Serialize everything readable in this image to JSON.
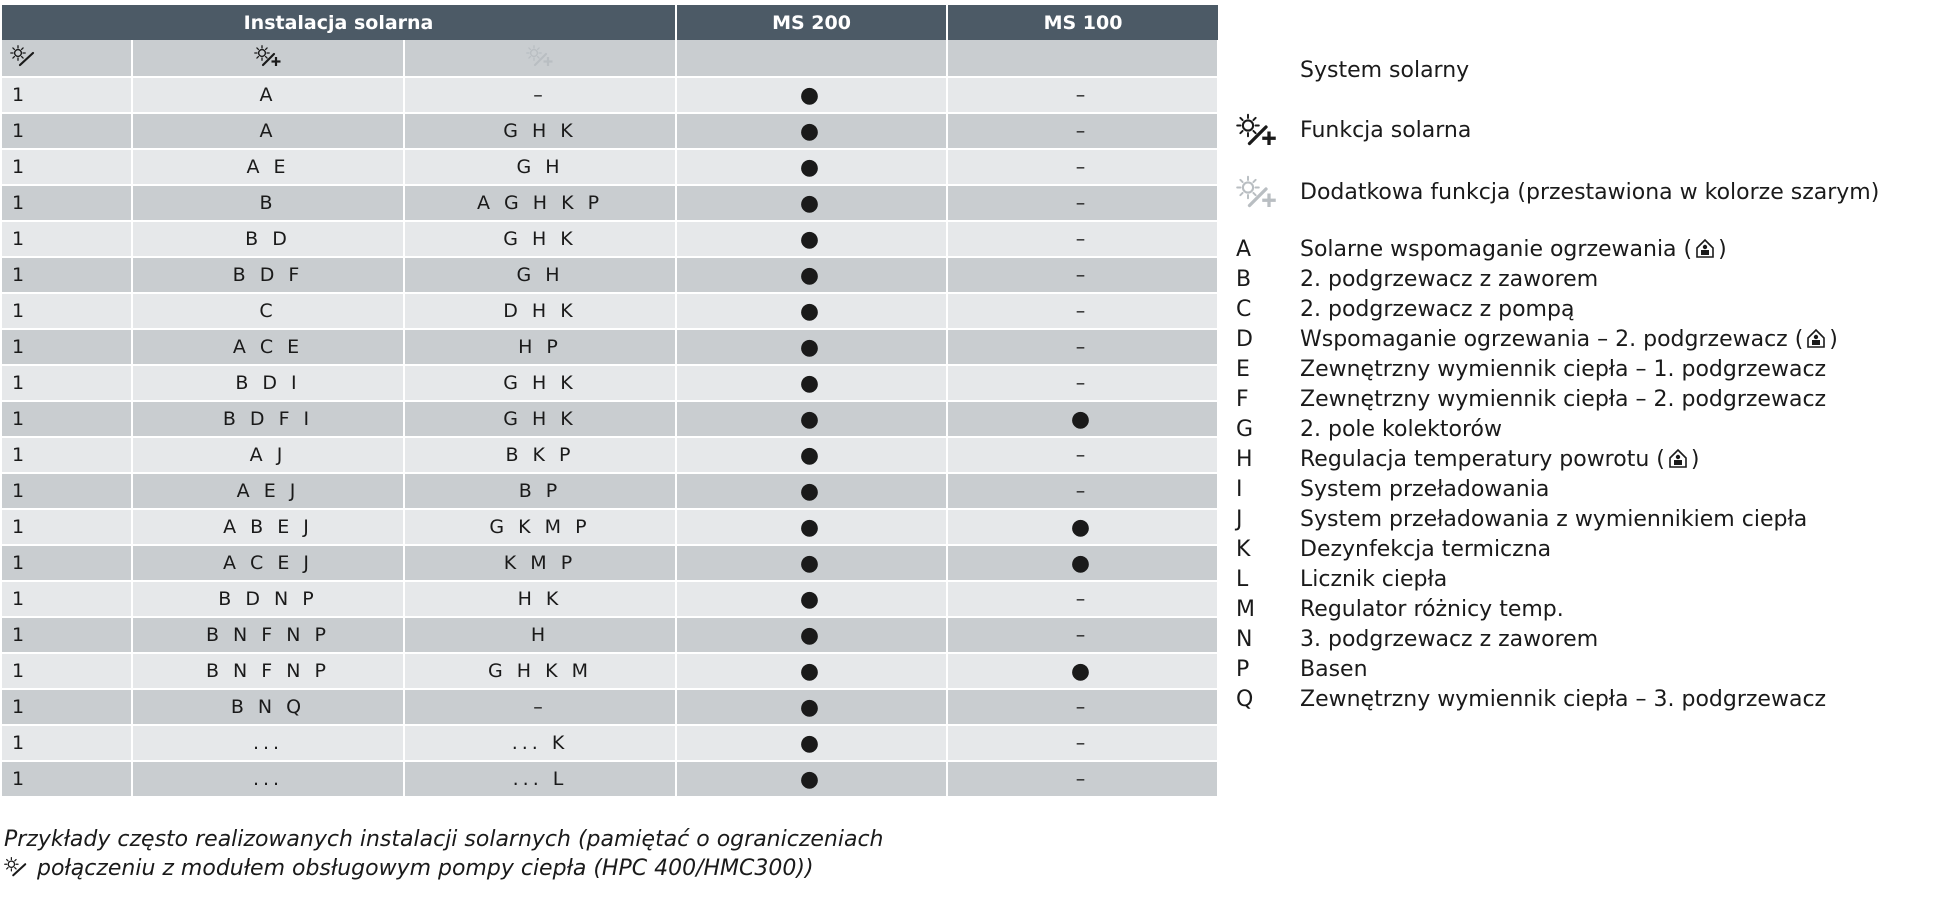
{
  "table": {
    "header": {
      "group_label": "Instalacja solarna",
      "ms200_label": "MS 200",
      "ms100_label": "MS 100"
    },
    "icons": {
      "col1": "solar-system-icon",
      "col2": "solar-function-icon",
      "col3": "additional-function-icon"
    },
    "rows": [
      {
        "system": "1",
        "functions": "A",
        "additional": "–",
        "ms200": "●",
        "ms100": "–"
      },
      {
        "system": "1",
        "functions": "A",
        "additional": "G H K",
        "ms200": "●",
        "ms100": "–"
      },
      {
        "system": "1",
        "functions": "A E",
        "additional": "G H",
        "ms200": "●",
        "ms100": "–"
      },
      {
        "system": "1",
        "functions": "B",
        "additional": "A G H K P",
        "ms200": "●",
        "ms100": "–"
      },
      {
        "system": "1",
        "functions": "B D",
        "additional": "G H K",
        "ms200": "●",
        "ms100": "–"
      },
      {
        "system": "1",
        "functions": "B D F",
        "additional": "G H",
        "ms200": "●",
        "ms100": "–"
      },
      {
        "system": "1",
        "functions": "C",
        "additional": "D H K",
        "ms200": "●",
        "ms100": "–"
      },
      {
        "system": "1",
        "functions": "A C E",
        "additional": "H P",
        "ms200": "●",
        "ms100": "–"
      },
      {
        "system": "1",
        "functions": "B D I",
        "additional": "G H K",
        "ms200": "●",
        "ms100": "–"
      },
      {
        "system": "1",
        "functions": "B D F I",
        "additional": "G H K",
        "ms200": "●",
        "ms100": "●"
      },
      {
        "system": "1",
        "functions": "A J",
        "additional": "B K P",
        "ms200": "●",
        "ms100": "–"
      },
      {
        "system": "1",
        "functions": "A E J",
        "additional": "B P",
        "ms200": "●",
        "ms100": "–"
      },
      {
        "system": "1",
        "functions": "A B E J",
        "additional": "G K M P",
        "ms200": "●",
        "ms100": "●"
      },
      {
        "system": "1",
        "functions": "A C E J",
        "additional": "K M P",
        "ms200": "●",
        "ms100": "●"
      },
      {
        "system": "1",
        "functions": "B D N P",
        "additional": "H K",
        "ms200": "●",
        "ms100": "–"
      },
      {
        "system": "1",
        "functions": "B N F N P",
        "additional": "H",
        "ms200": "●",
        "ms100": "–"
      },
      {
        "system": "1",
        "functions": "B N F N P",
        "additional": "G H K M",
        "ms200": "●",
        "ms100": "●"
      },
      {
        "system": "1",
        "functions": "B N Q",
        "additional": "–",
        "ms200": "●",
        "ms100": "–"
      },
      {
        "system": "1",
        "functions": "...",
        "additional": "... K",
        "ms200": "●",
        "ms100": "–"
      },
      {
        "system": "1",
        "functions": "...",
        "additional": "... L",
        "ms200": "●",
        "ms100": "–"
      }
    ]
  },
  "legend": {
    "symbols": [
      {
        "icon": "solar-system-icon",
        "label": "System solarny"
      },
      {
        "icon": "solar-function-icon",
        "label": "Funkcja solarna"
      },
      {
        "icon": "additional-function-icon",
        "label": "Dodatkowa funkcja (przestawiona w kolorze szarym)"
      }
    ],
    "letters": [
      {
        "key": "A",
        "label": "Solarne wspomaganie ogrzewania (",
        "suffix": ")",
        "house_icon": true
      },
      {
        "key": "B",
        "label": "2. podgrzewacz z zaworem"
      },
      {
        "key": "C",
        "label": "2. podgrzewacz z pompą"
      },
      {
        "key": "D",
        "label": "Wspomaganie ogrzewania – 2. podgrzewacz (",
        "suffix": ")",
        "house_icon": true
      },
      {
        "key": "E",
        "label": "Zewnętrzny wymiennik ciepła – 1. podgrzewacz"
      },
      {
        "key": "F",
        "label": "Zewnętrzny wymiennik ciepła – 2. podgrzewacz"
      },
      {
        "key": "G",
        "label": "2. pole kolektorów"
      },
      {
        "key": "H",
        "label": "Regulacja temperatury powrotu (",
        "suffix": ")",
        "house_icon": true
      },
      {
        "key": "I",
        "label": "System przeładowania"
      },
      {
        "key": "J",
        "label": "System przeładowania z wymiennikiem ciepła"
      },
      {
        "key": "K",
        "label": "Dezynfekcja termiczna"
      },
      {
        "key": "L",
        "label": "Licznik ciepła"
      },
      {
        "key": "M",
        "label": "Regulator różnicy temp."
      },
      {
        "key": "N",
        "label": "3. podgrzewacz z zaworem"
      },
      {
        "key": "P",
        "label": "Basen"
      },
      {
        "key": "Q",
        "label": "Zewnętrzny wymiennik ciepła – 3. podgrzewacz"
      }
    ]
  },
  "caption": {
    "line1": "Przykłady często realizowanych instalacji solarnych (pamiętać o ograniczeniach",
    "line2": " połączeniu z modułem obsługowym pompy ciepła (HPC 400/HMC300))"
  },
  "colors": {
    "header_bg": "#4c5a66",
    "row_dark": "#c9cdd0",
    "row_light": "#e6e8ea",
    "icon_gray": "#b9bec2"
  }
}
